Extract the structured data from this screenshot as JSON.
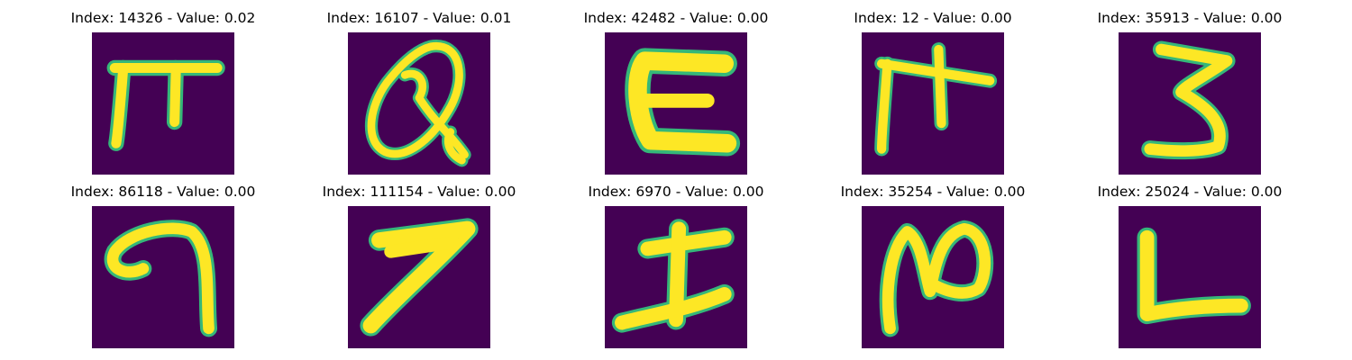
{
  "figure": {
    "panels": [
      {
        "title": "Index: 14326 - Value: 0.02",
        "glyph": "pi-glyph"
      },
      {
        "title": "Index: 16107 - Value: 0.01",
        "glyph": "looped-q-glyph"
      },
      {
        "title": "Index: 42482 - Value: 0.00",
        "glyph": "c-shape-glyph"
      },
      {
        "title": "Index: 12 - Value: 0.00",
        "glyph": "pi-cross-glyph"
      },
      {
        "title": "Index: 35913 - Value: 0.00",
        "glyph": "three-glyph"
      },
      {
        "title": "Index: 86118 - Value: 0.00",
        "glyph": "hook-glyph"
      },
      {
        "title": "Index: 111154 - Value: 0.00",
        "glyph": "seven-glyph"
      },
      {
        "title": "Index: 6970 - Value: 0.00",
        "glyph": "cross-glyph"
      },
      {
        "title": "Index: 35254 - Value: 0.00",
        "glyph": "loop-n-glyph"
      },
      {
        "title": "Index: 25024 - Value: 0.00",
        "glyph": "l-shape-glyph"
      }
    ],
    "colors": {
      "background": "#440154",
      "stroke": "#fde725",
      "edge": "#35b779"
    }
  }
}
